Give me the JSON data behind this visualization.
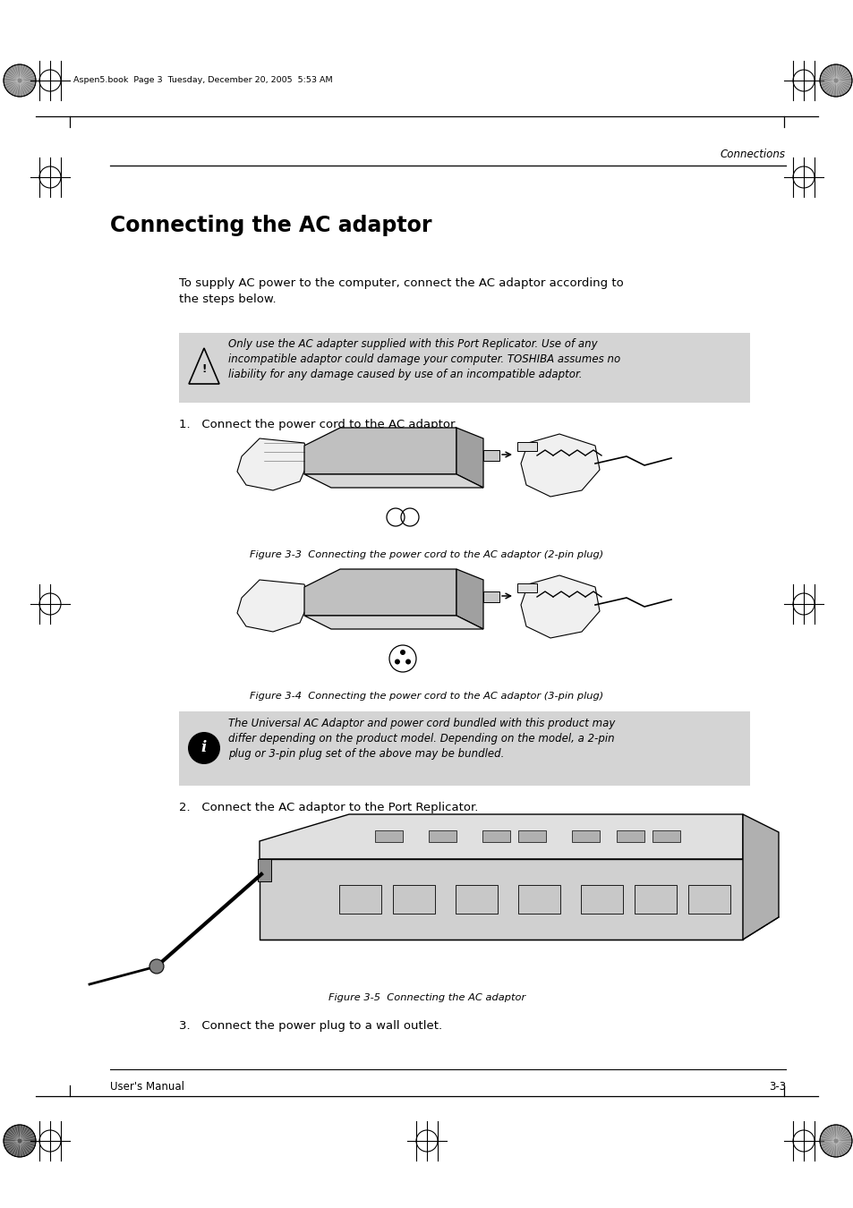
{
  "bg_color": "#ffffff",
  "page_width": 9.54,
  "page_height": 13.5,
  "header_file_text": "Aspen5.book  Page 3  Tuesday, December 20, 2005  5:53 AM",
  "header_text": "Connections",
  "title": "Connecting the AC adaptor",
  "body_text_1": "To supply AC power to the computer, connect the AC adaptor according to\nthe steps below.",
  "warning_text": "Only use the AC adapter supplied with this Port Replicator. Use of any\nincompatible adaptor could damage your computer. TOSHIBA assumes no\nliability for any damage caused by use of an incompatible adaptor.",
  "warning_bg": "#d4d4d4",
  "step1_text": "1.   Connect the power cord to the AC adaptor.",
  "fig3_caption": "Figure 3-3  Connecting the power cord to the AC adaptor (2-pin plug)",
  "fig4_caption": "Figure 3-4  Connecting the power cord to the AC adaptor (3-pin plug)",
  "info_text": "The Universal AC Adaptor and power cord bundled with this product may\ndiffer depending on the product model. Depending on the model, a 2-pin\nplug or 3-pin plug set of the above may be bundled.",
  "info_bg": "#d4d4d4",
  "step2_text": "2.   Connect the AC adaptor to the Port Replicator.",
  "fig5_caption": "Figure 3-5  Connecting the AC adaptor",
  "step3_text": "3.   Connect the power plug to a wall outlet.",
  "footer_left": "User's Manual",
  "footer_right": "3-3",
  "body_fontsize": 9.5,
  "caption_fontsize": 8.2,
  "warn_fontsize": 8.5
}
